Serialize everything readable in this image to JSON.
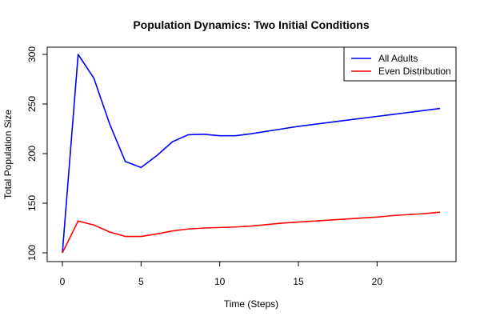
{
  "chart_data": {
    "type": "line",
    "title": "Population Dynamics: Two Initial Conditions",
    "xlabel": "Time (Steps)",
    "ylabel": "Total Population Size",
    "xlim": [
      0,
      24
    ],
    "ylim": [
      100,
      300
    ],
    "xticks": [
      0,
      5,
      10,
      15,
      20
    ],
    "yticks": [
      100,
      150,
      200,
      250,
      300
    ],
    "legend_position": "top-right",
    "grid": false,
    "series": [
      {
        "name": "All Adults",
        "color": "#0000ff",
        "x": [
          0,
          1,
          2,
          3,
          4,
          5,
          6,
          7,
          8,
          9,
          10,
          11,
          12,
          13,
          14,
          15,
          16,
          17,
          18,
          19,
          20,
          21,
          22,
          23,
          24
        ],
        "y": [
          100,
          300,
          276,
          230,
          192,
          186,
          198,
          212,
          219,
          219.5,
          218,
          218,
          220,
          222.5,
          225,
          227.5,
          229.5,
          231.5,
          233.5,
          235.5,
          237.5,
          239.5,
          241.5,
          243.5,
          245.5
        ]
      },
      {
        "name": "Even Distribution",
        "color": "#ff0000",
        "x": [
          0,
          1,
          2,
          3,
          4,
          5,
          6,
          7,
          8,
          9,
          10,
          11,
          12,
          13,
          14,
          15,
          16,
          17,
          18,
          19,
          20,
          21,
          22,
          23,
          24
        ],
        "y": [
          100,
          132,
          128,
          121,
          116.5,
          116.5,
          119,
          122,
          124,
          125,
          125.5,
          126,
          127,
          128.5,
          130,
          131,
          132,
          133,
          134,
          135,
          136,
          137.5,
          138.5,
          139.5,
          141
        ]
      }
    ]
  }
}
